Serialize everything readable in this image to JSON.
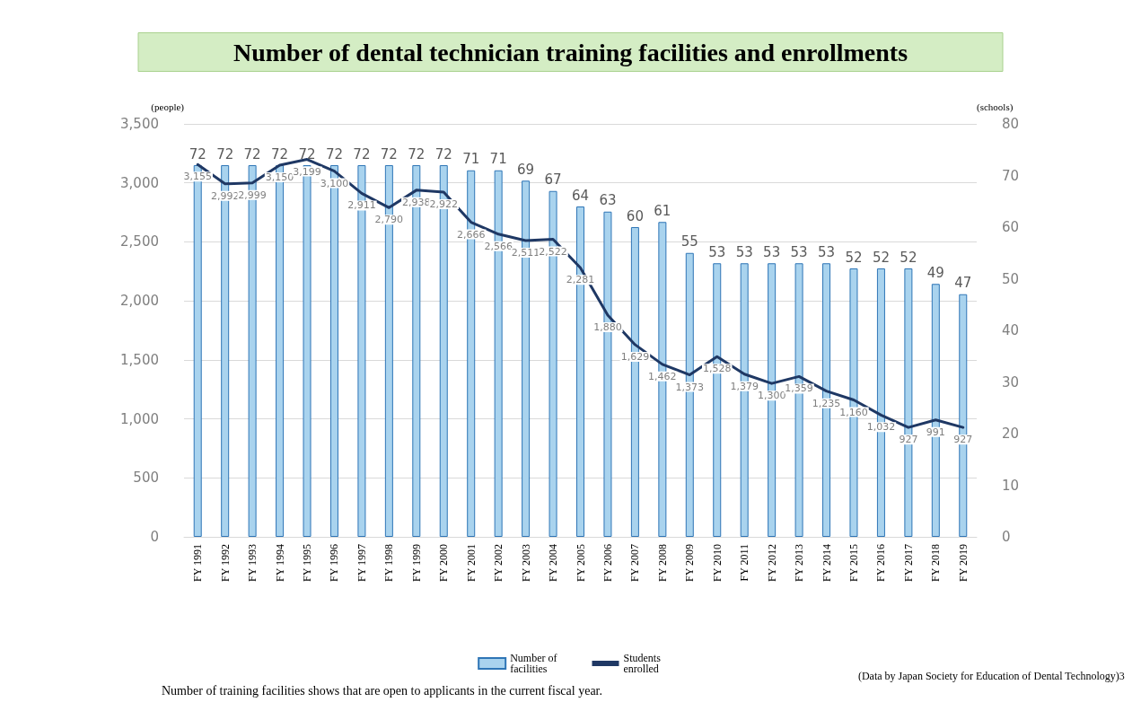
{
  "chart_data": {
    "type": "bar",
    "title": "Number of dental technician training facilities and enrollments",
    "ylabel": "(people)",
    "y2label": "(schools)",
    "categories": [
      "FY 1991",
      "FY 1992",
      "FY 1993",
      "FY 1994",
      "FY 1995",
      "FY 1996",
      "FY 1997",
      "FY 1998",
      "FY 1999",
      "FY 2000",
      "FY 2001",
      "FY 2002",
      "FY 2003",
      "FY 2004",
      "FY 2005",
      "FY 2006",
      "FY 2007",
      "FY 2008",
      "FY 2009",
      "FY 2010",
      "FY 2011",
      "FY 2012",
      "FY 2013",
      "FY 2014",
      "FY 2015",
      "FY 2016",
      "FY 2017",
      "FY 2018",
      "FY 2019"
    ],
    "series": [
      {
        "name": "Number of facilities",
        "axis": "y2",
        "color": "#a9d3ee",
        "values": [
          72,
          72,
          72,
          72,
          72,
          72,
          72,
          72,
          72,
          72,
          71,
          71,
          69,
          67,
          64,
          63,
          60,
          61,
          55,
          53,
          53,
          53,
          53,
          53,
          52,
          52,
          52,
          49,
          47
        ]
      },
      {
        "name": "Students enrolled",
        "type": "line",
        "color": "#1f3864",
        "values": [
          3155,
          2992,
          2999,
          3150,
          3199,
          3100,
          2911,
          2790,
          2938,
          2922,
          2666,
          2566,
          2511,
          2522,
          2281,
          1880,
          1629,
          1462,
          1373,
          1528,
          1379,
          1300,
          1359,
          1235,
          1160,
          1032,
          927,
          991,
          927
        ],
        "value_labels": [
          "3,155",
          "2,992",
          "2,999",
          "3,150",
          "3,199",
          "3,100",
          "2,911",
          "2,790",
          "2,938",
          "2,922",
          "2,666",
          "2,566",
          "2,511",
          "2,522",
          "2,281",
          "1,880",
          "1,629",
          "1,462",
          "1,373",
          "1,528",
          "1,379",
          "1,300",
          "1,359",
          "1,235",
          "1,160",
          "1,032",
          "927",
          "991",
          "927"
        ]
      }
    ],
    "ylim": [
      0,
      3500
    ],
    "yticks": [
      0,
      500,
      {
        "value": 1000,
        "label": "1,000"
      },
      {
        "value": 1500,
        "label": "1,500"
      },
      {
        "value": 2000,
        "label": "2,000"
      },
      {
        "value": 2500,
        "label": "2,500"
      },
      {
        "value": 3000,
        "label": "3,000"
      },
      {
        "value": 3500,
        "label": "3,500"
      }
    ],
    "y2lim": [
      0,
      80
    ],
    "y2ticks": [
      0,
      10,
      20,
      30,
      40,
      50,
      60,
      70,
      80
    ],
    "grid": "y",
    "legend": "bottom",
    "marker": "none",
    "line_style": "solid",
    "data_labels": true,
    "annotations": [
      "Number of training facilities shows that are open to applicants in the current fiscal year.",
      "(Data by Japan Society for Education of Dental Technology)3"
    ]
  }
}
